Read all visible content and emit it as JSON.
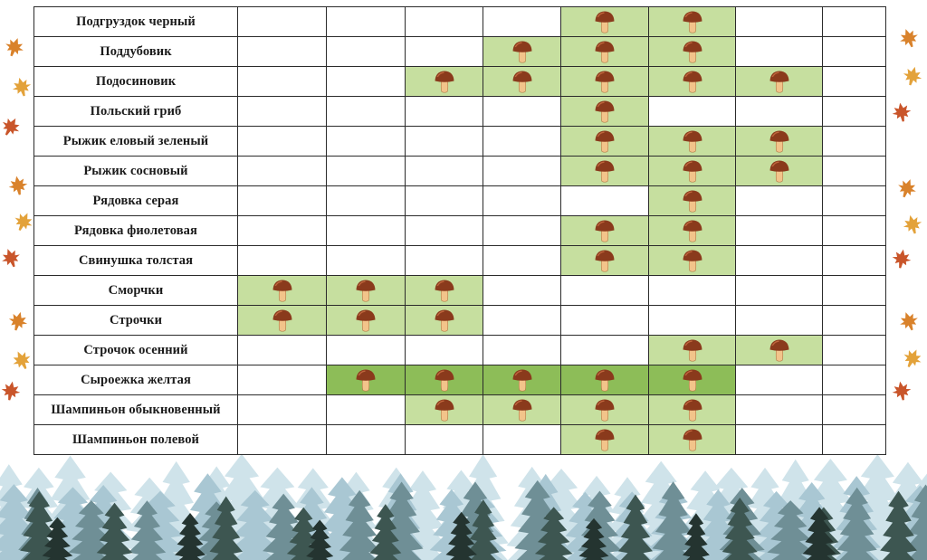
{
  "months_count": 8,
  "colors": {
    "season_cell": "#c6df9f",
    "season_cell_dark": "#8dbd58",
    "mushroom_cap": "#8a3a1c",
    "mushroom_stem": "#f2c48a",
    "forest": [
      "#cfe3ea",
      "#a9c7d3",
      "#6f8f96",
      "#3d5651",
      "#243430"
    ],
    "leaves": [
      "#d9822b",
      "#e3a23a",
      "#c9552a"
    ]
  },
  "icons": {
    "cell_icon": "mushroom-icon",
    "decor_left": "maple-leaf-icon",
    "decor_bottom": "forest-icon"
  },
  "rows": [
    {
      "name": "Подгруздок черный",
      "months": [
        0,
        0,
        0,
        0,
        1,
        1,
        0,
        0
      ]
    },
    {
      "name": "Поддубовик",
      "months": [
        0,
        0,
        0,
        1,
        1,
        1,
        0,
        0
      ]
    },
    {
      "name": "Подосиновик",
      "months": [
        0,
        0,
        1,
        1,
        1,
        1,
        1,
        0
      ]
    },
    {
      "name": "Польский гриб",
      "months": [
        0,
        0,
        0,
        0,
        1,
        0,
        0,
        0
      ]
    },
    {
      "name": "Рыжик еловый зеленый",
      "months": [
        0,
        0,
        0,
        0,
        1,
        1,
        1,
        0
      ]
    },
    {
      "name": "Рыжик сосновый",
      "months": [
        0,
        0,
        0,
        0,
        1,
        1,
        1,
        0
      ]
    },
    {
      "name": "Рядовка серая",
      "months": [
        0,
        0,
        0,
        0,
        0,
        1,
        0,
        0
      ]
    },
    {
      "name": "Рядовка фиолетовая",
      "months": [
        0,
        0,
        0,
        0,
        1,
        1,
        0,
        0
      ]
    },
    {
      "name": "Свинушка толстая",
      "months": [
        0,
        0,
        0,
        0,
        1,
        1,
        0,
        0
      ]
    },
    {
      "name": "Сморчки",
      "months": [
        1,
        1,
        1,
        0,
        0,
        0,
        0,
        0
      ]
    },
    {
      "name": "Строчки",
      "months": [
        1,
        1,
        1,
        0,
        0,
        0,
        0,
        0
      ]
    },
    {
      "name": "Строчок осенний",
      "months": [
        0,
        0,
        0,
        0,
        0,
        1,
        1,
        0
      ]
    },
    {
      "name": "Сыроежка желтая",
      "months": [
        0,
        2,
        2,
        2,
        2,
        2,
        0,
        0
      ]
    },
    {
      "name": "Шампиньон обыкновенный",
      "months": [
        0,
        0,
        1,
        1,
        1,
        1,
        0,
        0
      ]
    },
    {
      "name": "Шампиньон полевой",
      "months": [
        0,
        0,
        0,
        0,
        1,
        1,
        0,
        0
      ]
    }
  ]
}
